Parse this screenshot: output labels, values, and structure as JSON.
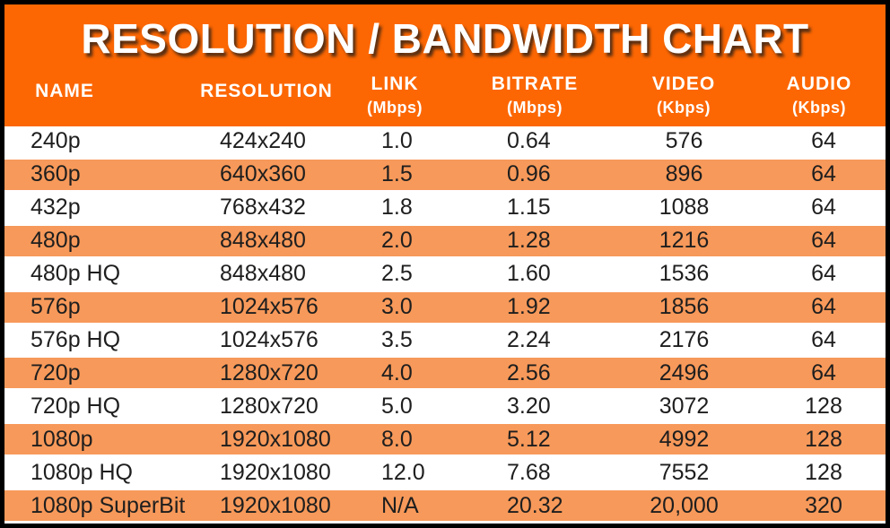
{
  "title": "RESOLUTION / BANDWIDTH CHART",
  "colors": {
    "header_orange": "#FC6703",
    "row_alt_orange": "#F7995A",
    "border_black": "#000000",
    "header_text": "#FFFFFF",
    "body_text": "#1E1E1E"
  },
  "header": {
    "columns": [
      {
        "key": "name",
        "label": "NAME",
        "unit": ""
      },
      {
        "key": "resolution",
        "label": "RESOLUTION",
        "unit": ""
      },
      {
        "key": "link",
        "label": "LINK",
        "unit": "(Mbps)"
      },
      {
        "key": "bitrate",
        "label": "BITRATE",
        "unit": "(Mbps)"
      },
      {
        "key": "video",
        "label": "VIDEO",
        "unit": "(Kbps)"
      },
      {
        "key": "audio",
        "label": "AUDIO",
        "unit": "(Kbps)"
      }
    ]
  },
  "chart_data": {
    "type": "table",
    "title": "RESOLUTION / BANDWIDTH CHART",
    "columns": [
      "NAME",
      "RESOLUTION",
      "LINK (Mbps)",
      "BITRATE (Mbps)",
      "VIDEO (Kbps)",
      "AUDIO (Kbps)"
    ],
    "rows": [
      [
        "240p",
        "424x240",
        "1.0",
        "0.64",
        "576",
        "64"
      ],
      [
        "360p",
        "640x360",
        "1.5",
        "0.96",
        "896",
        "64"
      ],
      [
        "432p",
        "768x432",
        "1.8",
        "1.15",
        "1088",
        "64"
      ],
      [
        "480p",
        "848x480",
        "2.0",
        "1.28",
        "1216",
        "64"
      ],
      [
        "480p HQ",
        "848x480",
        "2.5",
        "1.60",
        "1536",
        "64"
      ],
      [
        "576p",
        "1024x576",
        "3.0",
        "1.92",
        "1856",
        "64"
      ],
      [
        "576p HQ",
        "1024x576",
        "3.5",
        "2.24",
        "2176",
        "64"
      ],
      [
        "720p",
        "1280x720",
        "4.0",
        "2.56",
        "2496",
        "64"
      ],
      [
        "720p HQ",
        "1280x720",
        "5.0",
        "3.20",
        "3072",
        "128"
      ],
      [
        "1080p",
        "1920x1080",
        "8.0",
        "5.12",
        "4992",
        "128"
      ],
      [
        "1080p HQ",
        "1920x1080",
        "12.0",
        "7.68",
        "7552",
        "128"
      ],
      [
        "1080p SuperBit",
        "1920x1080",
        "N/A",
        "20.32",
        "20,000",
        "320"
      ]
    ]
  }
}
